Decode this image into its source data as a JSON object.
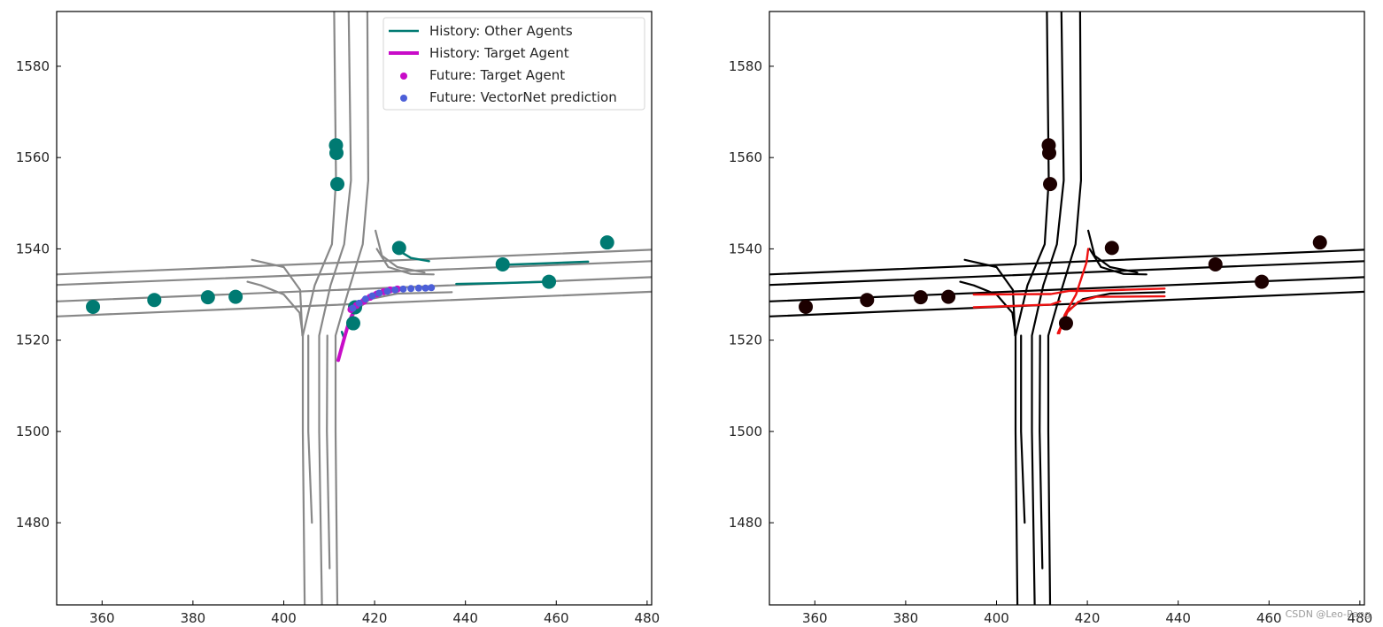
{
  "watermark": "CSDN @Leo-Peng",
  "chart_data": [
    {
      "type": "scatter",
      "panel": "left",
      "xlim": [
        350,
        481
      ],
      "ylim": [
        1462,
        1592
      ],
      "xticks": [
        360,
        380,
        400,
        420,
        440,
        460,
        480
      ],
      "yticks": [
        1480,
        1500,
        1520,
        1540,
        1560,
        1580
      ],
      "grid": false,
      "legend_position": "top-right",
      "lane_color": "#888888",
      "colors": {
        "other": "#007a72",
        "target": "#c80cc8",
        "prediction": "#4c5fd8"
      },
      "legend": [
        {
          "label": "History: Other Agents",
          "kind": "line",
          "color": "#007a72"
        },
        {
          "label": "History: Target Agent",
          "kind": "thick-line",
          "color": "#c80cc8"
        },
        {
          "label": "Future: Target Agent",
          "kind": "dot",
          "color": "#c80cc8"
        },
        {
          "label": "Future: VectorNet prediction",
          "kind": "dot",
          "color": "#4c5fd8"
        }
      ],
      "agents": [
        {
          "x": 358,
          "y": 1527.3
        },
        {
          "x": 371.5,
          "y": 1528.8
        },
        {
          "x": 383.3,
          "y": 1529.4
        },
        {
          "x": 389.4,
          "y": 1529.5
        },
        {
          "x": 411.5,
          "y": 1562.7
        },
        {
          "x": 411.6,
          "y": 1561
        },
        {
          "x": 411.8,
          "y": 1554.2
        },
        {
          "x": 425.4,
          "y": 1540.2
        },
        {
          "x": 448.2,
          "y": 1536.6
        },
        {
          "x": 458.4,
          "y": 1532.8
        },
        {
          "x": 471.2,
          "y": 1541.4
        },
        {
          "x": 415.3,
          "y": 1523.7
        },
        {
          "x": 415.7,
          "y": 1527.2
        }
      ],
      "other_histories": [
        [
          [
            425.5,
            1539.5
          ],
          [
            428,
            1538
          ],
          [
            432,
            1537.3
          ]
        ],
        [
          [
            448,
            1536.5
          ],
          [
            457,
            1536.8
          ],
          [
            467,
            1537.2
          ]
        ],
        [
          [
            438,
            1532.3
          ],
          [
            448,
            1532.5
          ],
          [
            458,
            1532.8
          ]
        ],
        [
          [
            412.8,
            1521.8
          ],
          [
            413.2,
            1520.6
          ]
        ]
      ],
      "target_history": [
        [
          412,
          1515.6
        ],
        [
          413.2,
          1520
        ],
        [
          414.3,
          1523.8
        ],
        [
          415.5,
          1526.6
        ],
        [
          417.5,
          1528.8
        ],
        [
          420,
          1530.2
        ],
        [
          423,
          1531
        ]
      ],
      "target_future": [
        [
          414.8,
          1526.7
        ],
        [
          416,
          1527.6
        ],
        [
          417.6,
          1528.5
        ],
        [
          419,
          1529.4
        ],
        [
          420.5,
          1530.1
        ],
        [
          422,
          1530.6
        ],
        [
          423.4,
          1531
        ],
        [
          425,
          1531.2
        ]
      ],
      "prediction": [
        [
          415.2,
          1527
        ],
        [
          416.6,
          1528.1
        ],
        [
          418,
          1529
        ],
        [
          419.5,
          1529.7
        ],
        [
          421,
          1530.3
        ],
        [
          422.8,
          1530.7
        ],
        [
          424.5,
          1531
        ],
        [
          426.3,
          1531.2
        ],
        [
          428,
          1531.3
        ],
        [
          429.7,
          1531.4
        ],
        [
          431.2,
          1531.4
        ],
        [
          432.5,
          1531.5
        ]
      ]
    },
    {
      "type": "scatter",
      "panel": "right",
      "xlim": [
        350,
        481
      ],
      "ylim": [
        1462,
        1592
      ],
      "xticks": [
        360,
        380,
        400,
        420,
        440,
        460,
        480
      ],
      "yticks": [
        1480,
        1500,
        1520,
        1540,
        1560,
        1580
      ],
      "grid": false,
      "lane_color": "#000000",
      "highlight_color": "#ee1111",
      "agent_color": "#1c0000",
      "agents": [
        {
          "x": 358,
          "y": 1527.3
        },
        {
          "x": 371.5,
          "y": 1528.8
        },
        {
          "x": 383.3,
          "y": 1529.4
        },
        {
          "x": 389.4,
          "y": 1529.5
        },
        {
          "x": 411.5,
          "y": 1562.7
        },
        {
          "x": 411.6,
          "y": 1561
        },
        {
          "x": 411.8,
          "y": 1554.2
        },
        {
          "x": 425.4,
          "y": 1540.2
        },
        {
          "x": 448.2,
          "y": 1536.6
        },
        {
          "x": 458.4,
          "y": 1532.8
        },
        {
          "x": 471.2,
          "y": 1541.4
        },
        {
          "x": 415.3,
          "y": 1523.7
        }
      ],
      "highlights": [
        [
          [
            395,
            1527.2
          ],
          [
            412,
            1527.8
          ],
          [
            414,
            1528.5
          ]
        ],
        [
          [
            395,
            1530
          ],
          [
            412,
            1530.1
          ],
          [
            416,
            1530.8
          ],
          [
            420,
            1530.8
          ],
          [
            437,
            1531.3
          ]
        ],
        [
          [
            413.5,
            1521.5
          ],
          [
            415.5,
            1526
          ],
          [
            418,
            1528.4
          ],
          [
            422,
            1529.5
          ],
          [
            437,
            1529.6
          ]
        ],
        [
          [
            413.8,
            1521.5
          ],
          [
            415,
            1525.5
          ],
          [
            417.5,
            1530
          ],
          [
            419.8,
            1537
          ],
          [
            420.2,
            1540
          ]
        ]
      ]
    }
  ],
  "lanes": [
    [
      [
        350,
        1525.2
      ],
      [
        481,
        1530.6
      ]
    ],
    [
      [
        350,
        1528.5
      ],
      [
        481,
        1533.8
      ]
    ],
    [
      [
        350,
        1532.1
      ],
      [
        481,
        1537.3
      ]
    ],
    [
      [
        350,
        1534.4
      ],
      [
        481,
        1539.8
      ]
    ],
    [
      [
        404.6,
        1462
      ],
      [
        404.2,
        1500
      ],
      [
        404.2,
        1521
      ],
      [
        406.8,
        1532
      ],
      [
        410.6,
        1541
      ],
      [
        411.5,
        1555
      ],
      [
        411.1,
        1592
      ]
    ],
    [
      [
        408.4,
        1462
      ],
      [
        407.8,
        1500
      ],
      [
        407.8,
        1521
      ],
      [
        410.3,
        1532
      ],
      [
        413.3,
        1541
      ],
      [
        414.8,
        1555
      ],
      [
        414.3,
        1592
      ]
    ],
    [
      [
        411.8,
        1462
      ],
      [
        411.4,
        1500
      ],
      [
        411.4,
        1521
      ],
      [
        414,
        1530
      ],
      [
        417.4,
        1541
      ],
      [
        418.6,
        1555
      ],
      [
        418.4,
        1592
      ]
    ],
    [
      [
        406.2,
        1480
      ],
      [
        405.4,
        1500
      ],
      [
        405.4,
        1521
      ]
    ],
    [
      [
        410.1,
        1470
      ],
      [
        409.5,
        1500
      ],
      [
        409.6,
        1521
      ]
    ],
    [
      [
        404.2,
        1521
      ],
      [
        403.5,
        1526
      ],
      [
        400,
        1530
      ],
      [
        395,
        1532
      ],
      [
        392,
        1532.8
      ]
    ],
    [
      [
        404.1,
        1521
      ],
      [
        403.6,
        1531
      ],
      [
        400,
        1536
      ],
      [
        393,
        1537.6
      ]
    ],
    [
      [
        420.2,
        1544
      ],
      [
        421.6,
        1538.5
      ],
      [
        425,
        1536
      ],
      [
        431,
        1534.8
      ]
    ],
    [
      [
        420.5,
        1540
      ],
      [
        423,
        1536
      ],
      [
        428,
        1534.5
      ],
      [
        433,
        1534.4
      ]
    ],
    [
      [
        413.6,
        1521.6
      ],
      [
        415.8,
        1526.5
      ],
      [
        419,
        1529
      ],
      [
        425,
        1530.2
      ],
      [
        437,
        1530.5
      ]
    ]
  ]
}
